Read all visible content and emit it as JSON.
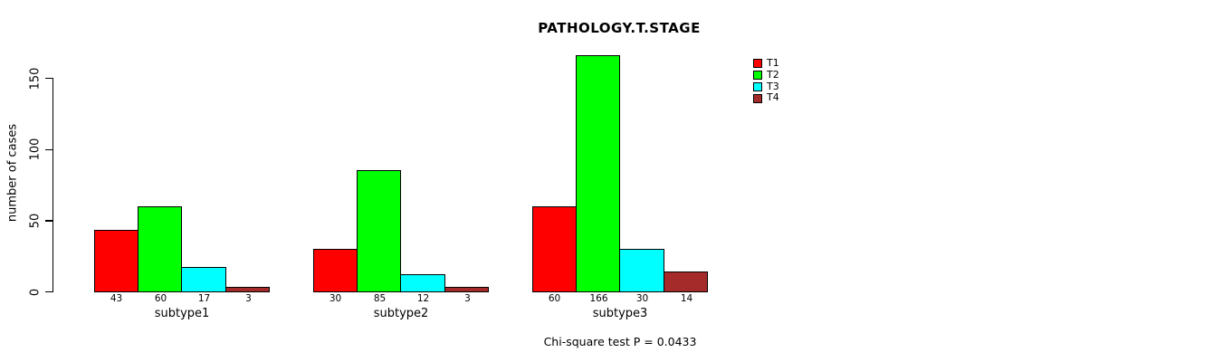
{
  "title": "PATHOLOGY.T.STAGE",
  "chart_data": {
    "type": "bar",
    "grouped": true,
    "title": "PATHOLOGY.T.STAGE",
    "categories": [
      "subtype1",
      "subtype2",
      "subtype3"
    ],
    "series": [
      {
        "name": "T1",
        "color": "#FF0000",
        "values": [
          43,
          30,
          60
        ]
      },
      {
        "name": "T2",
        "color": "#00FF00",
        "values": [
          60,
          85,
          166
        ]
      },
      {
        "name": "T3",
        "color": "#00FFFF",
        "values": [
          17,
          12,
          30
        ]
      },
      {
        "name": "T4",
        "color": "#A52A2A",
        "values": [
          3,
          3,
          14
        ]
      }
    ],
    "xlabel": "",
    "ylabel": "number of cases",
    "yticks": [
      0,
      50,
      100,
      150
    ],
    "ylim": [
      0,
      166
    ],
    "grid": false,
    "legend_position": "top-right",
    "bar_value_labels_shown": true,
    "caption": "Chi-square test P = 0.0433"
  }
}
